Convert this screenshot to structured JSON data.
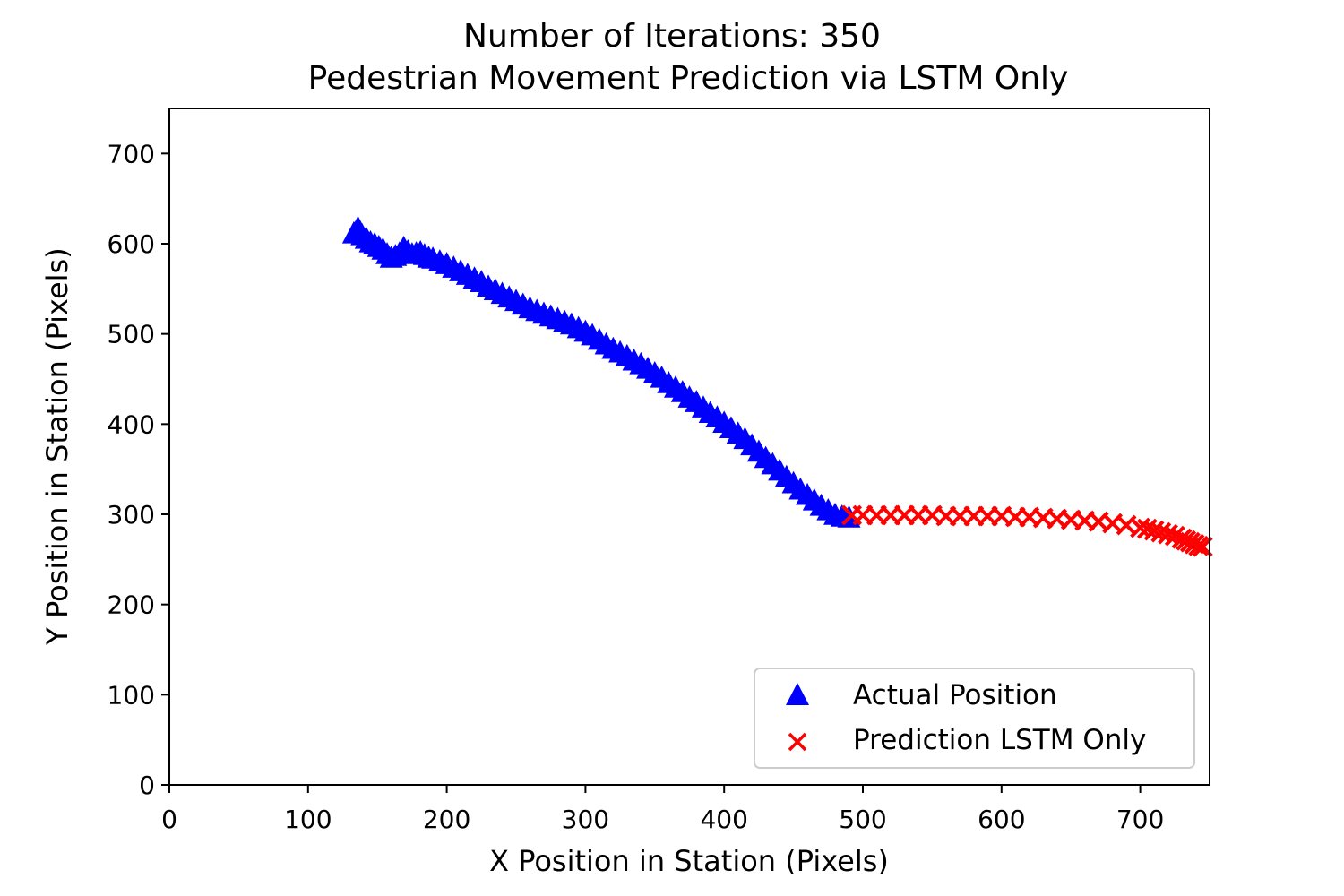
{
  "chart_data": {
    "type": "scatter",
    "title": "Number of Iterations: 350",
    "subtitle": "Pedestrian Movement Prediction via LSTM Only",
    "xlabel": "X Position in Station (Pixels)",
    "ylabel": "Y Position in Station (Pixels)",
    "xlim": [
      0,
      750
    ],
    "ylim": [
      0,
      750
    ],
    "xticks": [
      0,
      100,
      200,
      300,
      400,
      500,
      600,
      700
    ],
    "yticks": [
      0,
      100,
      200,
      300,
      400,
      500,
      600,
      700
    ],
    "grid": false,
    "legend_position": "lower-right",
    "series": [
      {
        "name": "Actual Position",
        "marker": "triangle",
        "color": "#0000ff",
        "x": [
          133,
          136,
          139,
          142,
          145,
          148,
          151,
          154,
          157,
          160,
          163,
          166,
          169,
          172,
          175,
          178,
          181,
          184,
          187,
          190,
          195,
          200,
          205,
          210,
          215,
          220,
          225,
          230,
          235,
          240,
          245,
          250,
          255,
          260,
          265,
          270,
          275,
          280,
          285,
          290,
          295,
          300,
          305,
          310,
          315,
          320,
          325,
          330,
          335,
          340,
          345,
          350,
          355,
          360,
          365,
          370,
          375,
          380,
          385,
          390,
          395,
          400,
          405,
          410,
          415,
          420,
          425,
          430,
          435,
          440,
          445,
          450,
          455,
          460,
          465,
          470,
          475,
          480,
          485,
          490
        ],
        "y": [
          612,
          618,
          610,
          606,
          602,
          600,
          597,
          594,
          589,
          585,
          587,
          590,
          596,
          592,
          589,
          590,
          591,
          588,
          585,
          584,
          581,
          578,
          574,
          570,
          566,
          562,
          558,
          553,
          549,
          545,
          541,
          537,
          533,
          529,
          526,
          523,
          520,
          517,
          514,
          511,
          507,
          503,
          499,
          494,
          489,
          484,
          480,
          476,
          471,
          467,
          462,
          457,
          452,
          446,
          441,
          436,
          430,
          425,
          419,
          413,
          408,
          402,
          396,
          390,
          384,
          377,
          370,
          363,
          356,
          349,
          342,
          335,
          328,
          322,
          316,
          310,
          305,
          300,
          298,
          297
        ]
      },
      {
        "name": "Prediction LSTM Only",
        "marker": "x",
        "color": "#ff0000",
        "x": [
          492,
          500,
          510,
          520,
          530,
          540,
          550,
          560,
          570,
          580,
          590,
          600,
          610,
          620,
          630,
          640,
          650,
          660,
          670,
          680,
          690,
          700,
          705,
          710,
          715,
          720,
          725,
          730,
          733,
          736,
          739,
          742,
          745
        ],
        "y": [
          299,
          299,
          299,
          299,
          299,
          299,
          299,
          298,
          298,
          298,
          298,
          298,
          297,
          297,
          296,
          295,
          294,
          293,
          292,
          290,
          288,
          285,
          284,
          282,
          280,
          278,
          276,
          273,
          271,
          269,
          267,
          265,
          264
        ]
      }
    ]
  }
}
